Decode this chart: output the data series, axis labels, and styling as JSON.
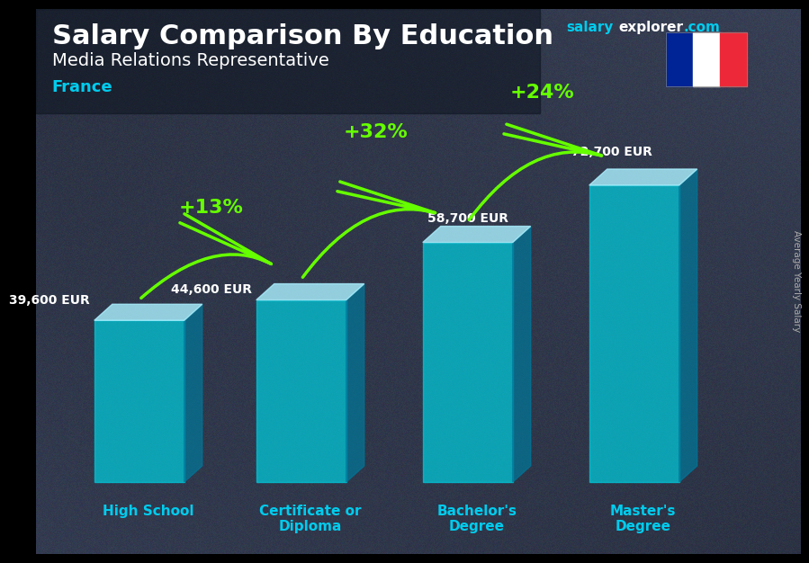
{
  "title_line1": "Salary Comparison By Education",
  "subtitle": "Media Relations Representative",
  "country": "France",
  "categories": [
    "High School",
    "Certificate or\nDiploma",
    "Bachelor's\nDegree",
    "Master's\nDegree"
  ],
  "values": [
    39600,
    44600,
    58700,
    72700
  ],
  "value_labels": [
    "39,600 EUR",
    "44,600 EUR",
    "58,700 EUR",
    "72,700 EUR"
  ],
  "pct_changes": [
    "+13%",
    "+32%",
    "+24%"
  ],
  "bar_front_color": "#00ccdd",
  "bar_top_color": "#aaf0ff",
  "bar_right_color": "#007799",
  "text_color_white": "#ffffff",
  "text_color_cyan": "#00ccee",
  "text_color_green": "#66ff00",
  "watermark_salary": "salary",
  "watermark_explorer": "explorer",
  "watermark_com": ".com",
  "side_label": "Average Yearly Salary",
  "flag_blue": "#002395",
  "flag_white": "#ffffff",
  "flag_red": "#ED2939",
  "bg_dark": "#2a3a4a",
  "bg_light": "#4a6070"
}
